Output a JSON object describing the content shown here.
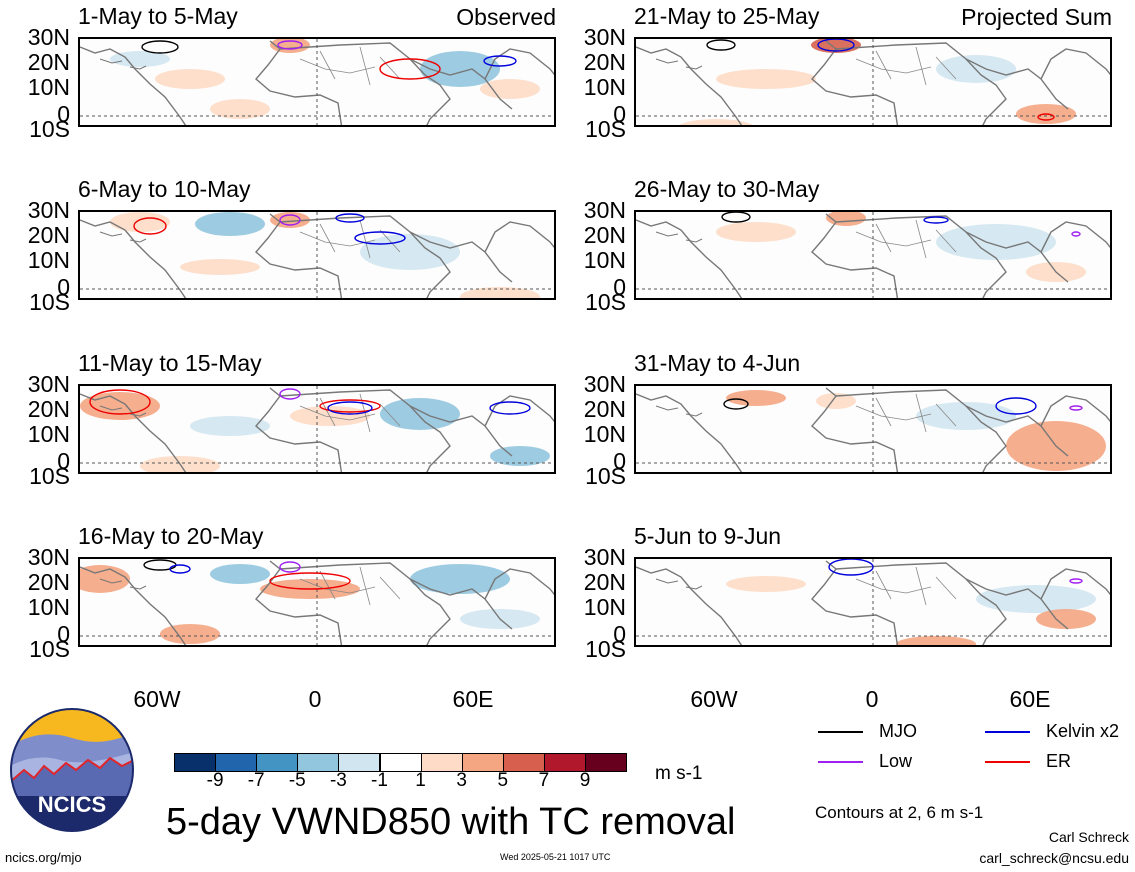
{
  "panels": [
    {
      "title": "1-May to 5-May",
      "tag": "Observed"
    },
    {
      "title": "21-May to 25-May",
      "tag": "Projected Sum"
    },
    {
      "title": "6-May to 10-May",
      "tag": ""
    },
    {
      "title": "26-May to 30-May",
      "tag": ""
    },
    {
      "title": "11-May to 15-May",
      "tag": ""
    },
    {
      "title": "31-May to 4-Jun",
      "tag": ""
    },
    {
      "title": "16-May to 20-May",
      "tag": ""
    },
    {
      "title": "5-Jun to 9-Jun",
      "tag": ""
    }
  ],
  "lat_labels": [
    "30N",
    "20N",
    "10N",
    "0",
    "10S"
  ],
  "lon_labels": [
    "60W",
    "0",
    "60E"
  ],
  "colorbar": {
    "colors": [
      "#08306b",
      "#2166ac",
      "#4393c3",
      "#92c5de",
      "#d1e5f0",
      "#ffffff",
      "#fddbc7",
      "#f4a582",
      "#d6604d",
      "#b2182b",
      "#67001f"
    ],
    "ticks": [
      "-9",
      "-7",
      "-5",
      "-3",
      "-1",
      "1",
      "3",
      "5",
      "7",
      "9"
    ],
    "units": "m s-1"
  },
  "legend": {
    "mjo": {
      "label": "MJO",
      "color": "#000000"
    },
    "kelvin": {
      "label": "Kelvin x2",
      "color": "#0000dd"
    },
    "low": {
      "label": "Low",
      "color": "#a020f0"
    },
    "er": {
      "label": "ER",
      "color": "#ee0000"
    }
  },
  "contours_note": "Contours at 2, 6 m s-1",
  "main_title": "5-day VWND850 with TC removal",
  "logo_text": "NCICS",
  "url": "ncics.org/mjo",
  "timestamp": "Wed 2025-05-21 1017 UTC",
  "author": "Carl Schreck",
  "email": "carl_schreck@ncsu.edu"
}
